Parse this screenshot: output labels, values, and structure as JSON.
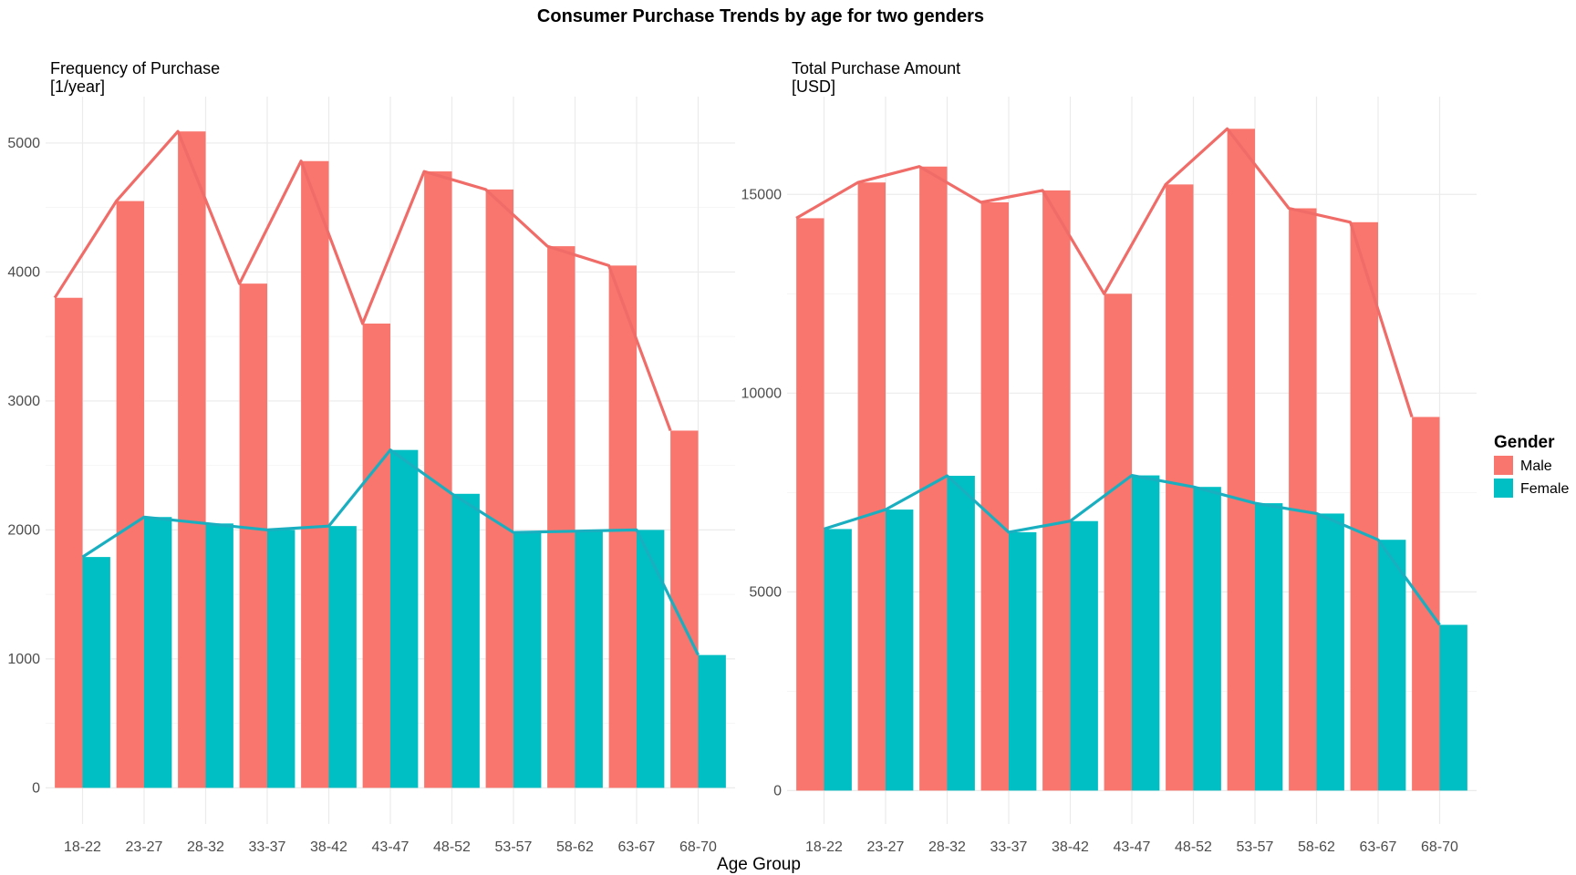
{
  "title": "Consumer Purchase Trends by age for two genders",
  "xlabel": "Age Group",
  "legend": {
    "title": "Gender",
    "entries": [
      {
        "name": "Male",
        "color": "#F8766D"
      },
      {
        "name": "Female",
        "color": "#00BFC4"
      }
    ]
  },
  "colors": {
    "male": "#F8766D",
    "female": "#00BFC4",
    "male_line": "#F06C68",
    "female_line": "#1AAFC0"
  },
  "chart_data": [
    {
      "type": "bar",
      "title": "Frequency of Purchase",
      "subtitle": "[1/year]",
      "xlabel": "Age Group",
      "categories": [
        "18-22",
        "23-27",
        "28-32",
        "33-37",
        "38-42",
        "43-47",
        "48-52",
        "53-57",
        "58-62",
        "63-67",
        "68-70"
      ],
      "series": [
        {
          "name": "Male",
          "values": [
            3800,
            4550,
            5090,
            3910,
            4860,
            3600,
            4780,
            4640,
            4200,
            4050,
            2770
          ]
        },
        {
          "name": "Female",
          "values": [
            1790,
            2100,
            2050,
            2000,
            2030,
            2620,
            2280,
            1980,
            1990,
            2000,
            1030
          ]
        }
      ],
      "yticks": [
        0,
        1000,
        2000,
        3000,
        4000,
        5000
      ],
      "ylim": [
        -280,
        5360
      ],
      "grid": true,
      "legend_position": "right"
    },
    {
      "type": "bar",
      "title": "Total Purchase Amount",
      "subtitle": "[USD]",
      "xlabel": "Age Group",
      "categories": [
        "18-22",
        "23-27",
        "28-32",
        "33-37",
        "38-42",
        "43-47",
        "48-52",
        "53-57",
        "58-62",
        "63-67",
        "68-70"
      ],
      "series": [
        {
          "name": "Male",
          "values": [
            14400,
            15300,
            15700,
            14800,
            15100,
            12500,
            15250,
            16650,
            14650,
            14300,
            9400
          ]
        },
        {
          "name": "Female",
          "values": [
            6580,
            7070,
            7920,
            6500,
            6780,
            7930,
            7640,
            7230,
            6970,
            6310,
            4170
          ]
        }
      ],
      "yticks": [
        0,
        5000,
        10000,
        15000
      ],
      "ylim": [
        -840,
        17460
      ],
      "grid": true,
      "legend_position": "right"
    }
  ]
}
